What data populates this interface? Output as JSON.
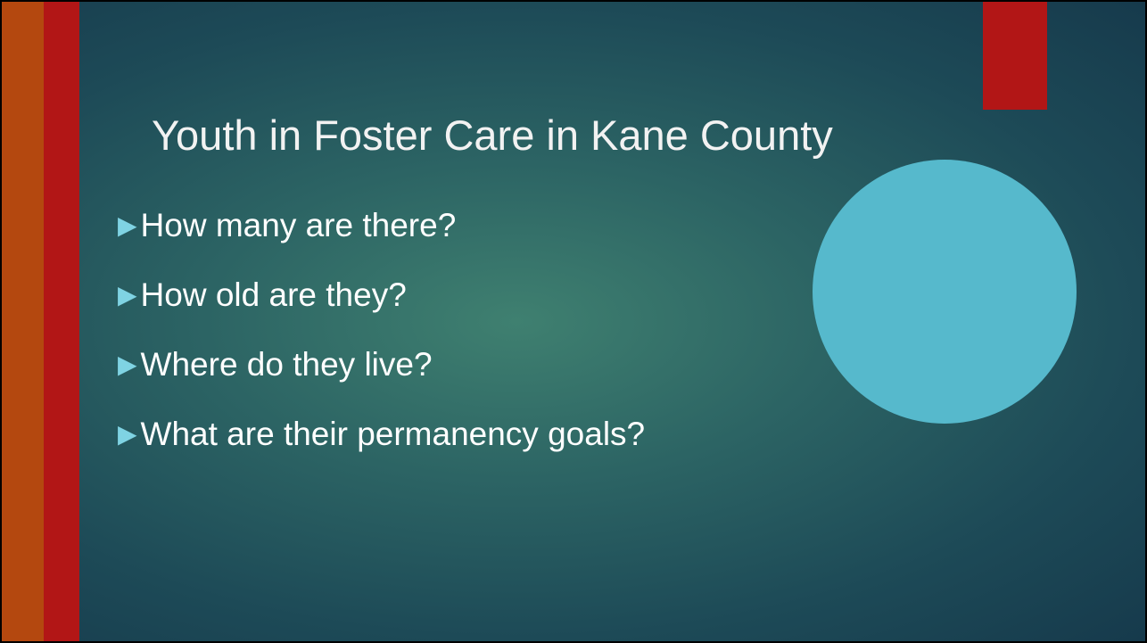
{
  "slide": {
    "title": "Youth in Foster Care in Kane County",
    "bullets": [
      "How many are there?",
      "How old are they?",
      "Where do they live?",
      "What are their permanency goals?"
    ]
  }
}
